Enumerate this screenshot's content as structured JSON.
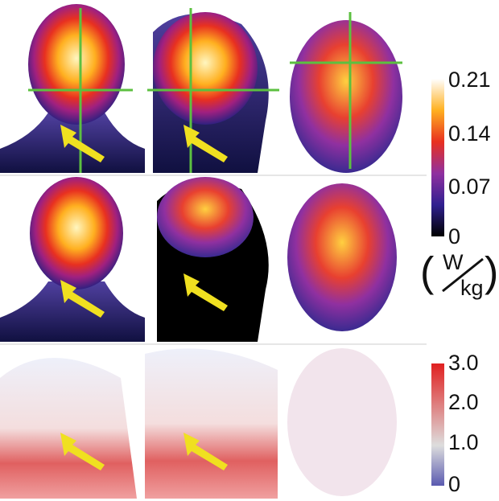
{
  "colorbar_top": {
    "ticks": [
      "0.21",
      "0.14",
      "0.07",
      "0"
    ],
    "unit_numerator": "W",
    "unit_denominator": "kg"
  },
  "colorbar_bottom": {
    "ticks": [
      "3.0",
      "2.0",
      "1.0",
      "0"
    ]
  }
}
